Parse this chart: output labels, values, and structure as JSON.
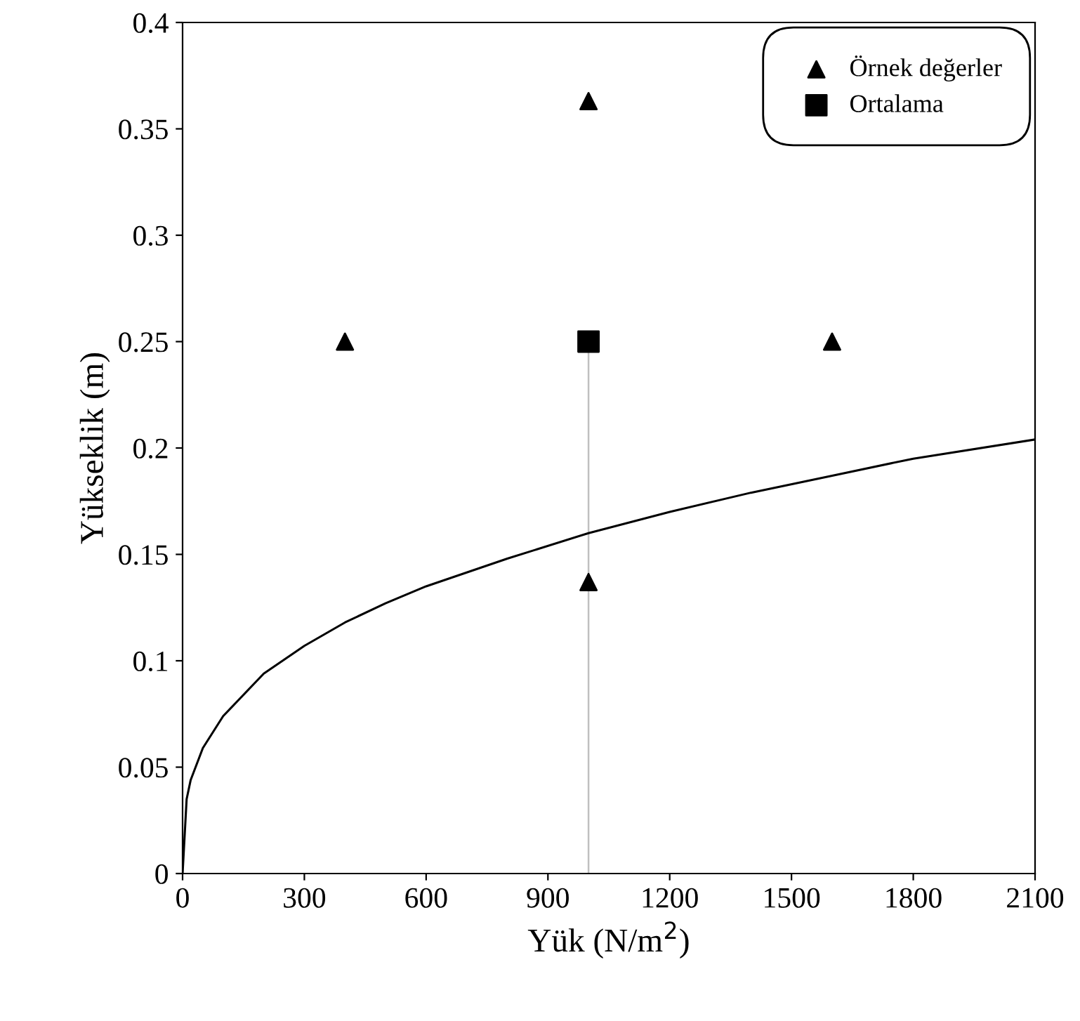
{
  "chart_data": {
    "type": "scatter",
    "xlabel": "Yük (N/m$^{2}$)",
    "ylabel": "Yükseklik (m)",
    "xlim": [
      0,
      2100
    ],
    "xticks": [
      0,
      300,
      600,
      900,
      1200,
      1500,
      1800,
      2100
    ],
    "ylim": [
      0,
      0.4
    ],
    "yticks": [
      0,
      0.05,
      0.1,
      0.15,
      0.2,
      0.25,
      0.3,
      0.35,
      0.4
    ],
    "grid": false,
    "legend": "top right",
    "series": [
      {
        "type": "line",
        "color": "#c0c0c0",
        "marker": "none",
        "x": [
          1000,
          1000
        ],
        "values": [
          0,
          0.25
        ]
      },
      {
        "type": "line",
        "color": "#000000",
        "marker": "none",
        "x": [
          0,
          10,
          20,
          50,
          100,
          200,
          300,
          400,
          500,
          600,
          800,
          1000,
          1200,
          1400,
          1600,
          1800,
          2100
        ],
        "values": [
          0,
          0.035,
          0.044,
          0.059,
          0.074,
          0.094,
          0.107,
          0.118,
          0.127,
          0.135,
          0.148,
          0.16,
          0.17,
          0.179,
          0.187,
          0.195,
          0.204
        ]
      },
      {
        "name": "Örnek değerler",
        "color": "#000000",
        "marker": "triangle",
        "x": [
          400,
          1000,
          1000,
          1600
        ],
        "values": [
          0.25,
          0.363,
          0.137,
          0.25
        ]
      },
      {
        "name": "Ortalama",
        "color": "#000000",
        "marker": "square",
        "x": [
          1000
        ],
        "values": [
          0.25
        ]
      }
    ]
  }
}
